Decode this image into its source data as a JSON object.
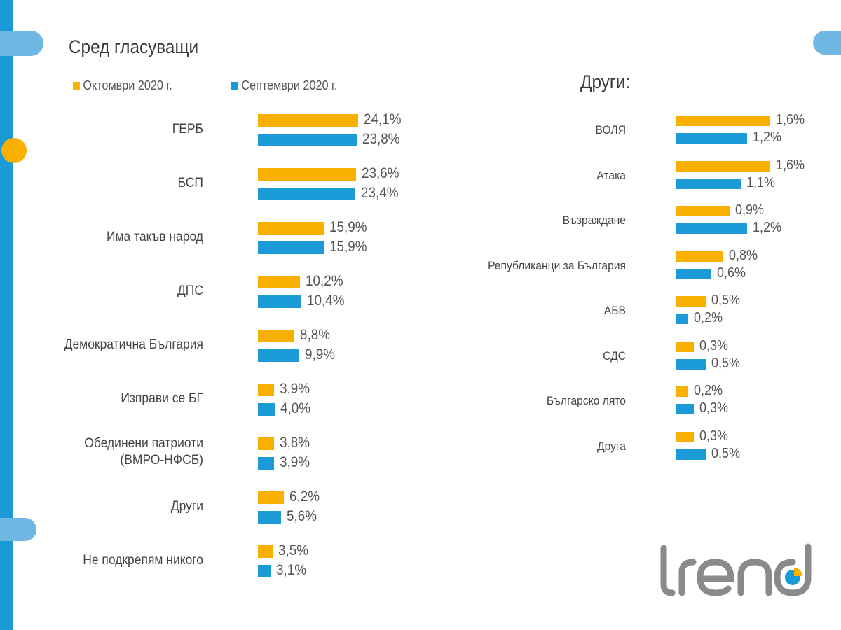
{
  "chart_data": [
    {
      "type": "bar",
      "orientation": "horizontal",
      "title": "Сред гласуващи",
      "categories": [
        "ГЕРБ",
        "БСП",
        "Има такъв народ",
        "ДПС",
        "Демократична България",
        "Изправи се БГ",
        "Обединени патриоти\n(ВМРО-НФСБ)",
        "Други",
        "Не подкрепям никого"
      ],
      "series": [
        {
          "name": "Октомври 2020 г.",
          "color": "#f9b000",
          "values": [
            24.1,
            23.6,
            15.9,
            10.2,
            8.8,
            3.9,
            3.8,
            6.2,
            3.5
          ],
          "labels": [
            "24,1%",
            "23,6%",
            "15,9%",
            "10,2%",
            "8,8%",
            "3,9%",
            "3,8%",
            "6,2%",
            "3,5%"
          ]
        },
        {
          "name": "Септември 2020 г.",
          "color": "#1a9ad6",
          "values": [
            23.8,
            23.4,
            15.9,
            10.4,
            9.9,
            4.0,
            3.9,
            5.6,
            3.1
          ],
          "labels": [
            "23,8%",
            "23,4%",
            "15,9%",
            "10,4%",
            "9,9%",
            "4,0%",
            "3,9%",
            "5,6%",
            "3,1%"
          ]
        }
      ],
      "legend": "top",
      "grid": false,
      "unit": "%"
    },
    {
      "type": "bar",
      "orientation": "horizontal",
      "title": "Други:",
      "categories": [
        "ВОЛЯ",
        "Атака",
        "Възраждане",
        "Републиканци за България",
        "АБВ",
        "СДС",
        "Българско лято",
        "Друга"
      ],
      "series": [
        {
          "name": "Октомври 2020 г.",
          "color": "#f9b000",
          "values": [
            1.6,
            1.6,
            0.9,
            0.8,
            0.5,
            0.3,
            0.2,
            0.3
          ],
          "labels": [
            "1,6%",
            "1,6%",
            "0,9%",
            "0,8%",
            "0,5%",
            "0,3%",
            "0,2%",
            "0,3%"
          ]
        },
        {
          "name": "Септември 2020 г.",
          "color": "#1a9ad6",
          "values": [
            1.2,
            1.1,
            1.2,
            0.6,
            0.2,
            0.5,
            0.3,
            0.5
          ],
          "labels": [
            "1,2%",
            "1,1%",
            "1,2%",
            "0,6%",
            "0,2%",
            "0,5%",
            "0,3%",
            "0,5%"
          ]
        }
      ],
      "grid": false,
      "unit": "%"
    }
  ],
  "logo": {
    "text": "trend",
    "colors": {
      "text": "#8a8a8a",
      "accent_blue": "#1a9ad6",
      "accent_orange": "#f9b000"
    }
  }
}
